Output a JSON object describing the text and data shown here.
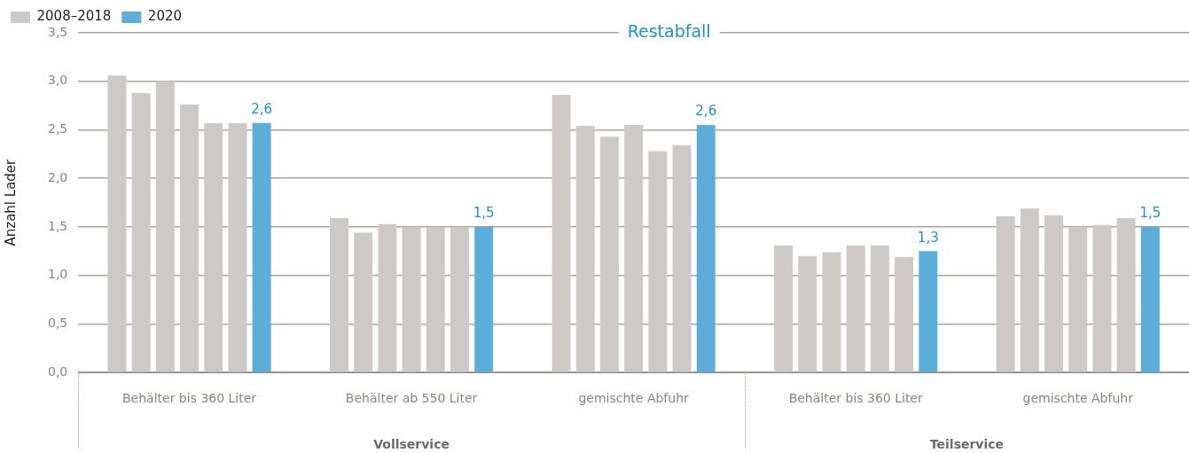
{
  "chart_data": {
    "type": "bar",
    "title": "Restabfall",
    "ylabel": "Anzahl Lader",
    "categories": [
      "Behälter bis 360 Liter",
      "Behälter ab 550 Liter",
      "gemischte Abfuhr",
      "Behälter bis 360 Liter",
      "gemischte Abfuhr"
    ],
    "series": [
      {
        "name": "2008–2018",
        "color": "#cdc9c6",
        "values": [
          3.06,
          1.59,
          2.86,
          1.31,
          1.61
        ]
      },
      {
        "color": "#cdc9c6",
        "values": [
          2.88,
          1.44,
          2.54,
          1.2,
          1.69
        ]
      },
      {
        "color": "#cdc9c6",
        "values": [
          3.0,
          1.53,
          2.43,
          1.24,
          1.62
        ]
      },
      {
        "color": "#cdc9c6",
        "values": [
          2.76,
          1.5,
          2.55,
          1.31,
          1.49
        ]
      },
      {
        "color": "#cdc9c6",
        "values": [
          2.57,
          1.5,
          2.28,
          1.31,
          1.52
        ]
      },
      {
        "color": "#cdc9c6",
        "values": [
          2.57,
          1.5,
          2.34,
          1.19,
          1.59
        ]
      },
      {
        "name": "2020",
        "color": "#5baed9",
        "values": [
          2.57,
          1.5,
          2.55,
          1.25,
          1.5
        ],
        "value_labels": [
          "2,6",
          "1,5",
          "2,6",
          "1,3",
          "1,5"
        ]
      }
    ],
    "ylim": [
      0,
      3.5
    ],
    "yticks": [
      {
        "value": 0,
        "label": "0,0"
      },
      {
        "value": 0.5,
        "label": "0,5"
      },
      {
        "value": 1,
        "label": "1,0"
      },
      {
        "value": 1.5,
        "label": "1,5"
      },
      {
        "value": 2,
        "label": "2,0"
      },
      {
        "value": 2.5,
        "label": "2,5"
      },
      {
        "value": 3,
        "label": "3,0"
      },
      {
        "value": 3.5,
        "label": "3,5"
      }
    ],
    "grid": "y",
    "legend": "top left",
    "annotations": [
      "Vollservice",
      "Teilservice"
    ]
  }
}
